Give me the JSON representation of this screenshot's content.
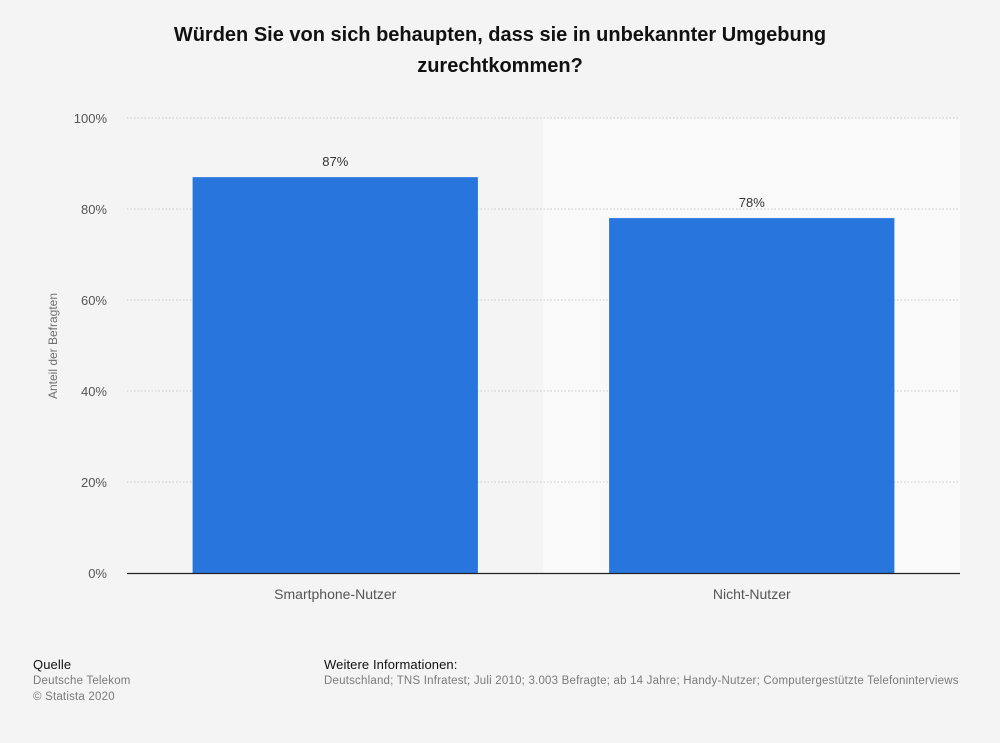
{
  "title": {
    "line1": "Würden Sie von sich behaupten, dass sie in unbekannter Umgebung",
    "line2": "zurechtkommen?"
  },
  "chart_data": {
    "type": "bar",
    "categories": [
      "Smartphone-Nutzer",
      "Nicht-Nutzer"
    ],
    "values": [
      87,
      78
    ],
    "data_labels": [
      "87%",
      "78%"
    ],
    "ylabel": "Anteil der Befragten",
    "ylim": [
      0,
      100
    ],
    "yticks": [
      0,
      20,
      40,
      60,
      80,
      100
    ],
    "ytick_labels": [
      "0%",
      "20%",
      "40%",
      "60%",
      "80%",
      "100%"
    ],
    "grid": true,
    "bar_color": "#2876dd"
  },
  "footer": {
    "source_heading": "Quelle",
    "source_name": "Deutsche Telekom",
    "copyright": "© Statista 2020",
    "info_heading": "Weitere Informationen:",
    "info_text": "Deutschland; TNS Infratest; Juli 2010; 3.003 Befragte; ab 14 Jahre; Handy-Nutzer; Computergestützte Telefoninterviews"
  }
}
